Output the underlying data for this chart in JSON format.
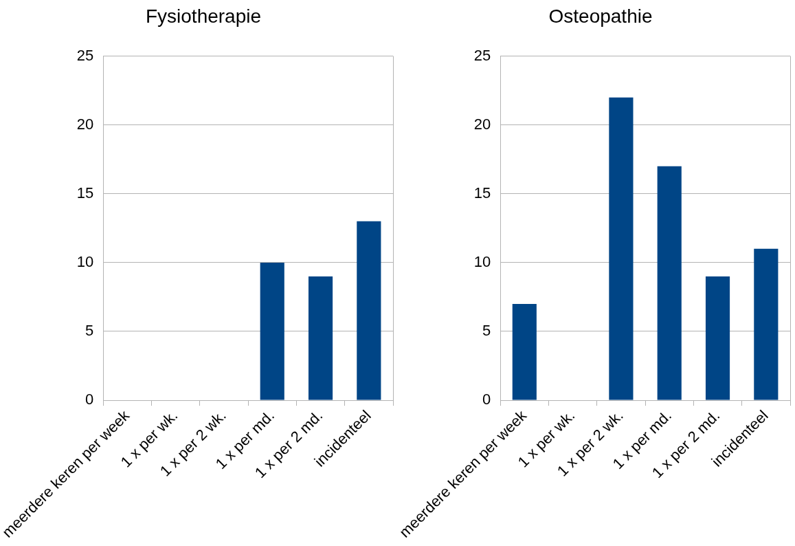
{
  "chart_data": [
    {
      "type": "bar",
      "title": "Fysiotherapie",
      "categories": [
        "meerdere keren per week",
        "1 x per wk.",
        "1 x per 2 wk.",
        "1 x per md.",
        "1 x per 2 md.",
        "incidenteel"
      ],
      "values": [
        0,
        0,
        0,
        10,
        9,
        13
      ],
      "color": "#004586",
      "ylim": [
        0,
        25
      ],
      "yticks": [
        0,
        5,
        10,
        15,
        20,
        25
      ],
      "grid": "y"
    },
    {
      "type": "bar",
      "title": "Osteopathie",
      "categories": [
        "meerdere keren per week",
        "1 x per wk.",
        "1 x per 2 wk.",
        "1 x per md.",
        "1 x per 2 md.",
        "incidenteel"
      ],
      "values": [
        7,
        0,
        22,
        17,
        9,
        11
      ],
      "color": "#004586",
      "ylim": [
        0,
        25
      ],
      "yticks": [
        0,
        5,
        10,
        15,
        20,
        25
      ],
      "grid": "y"
    }
  ]
}
